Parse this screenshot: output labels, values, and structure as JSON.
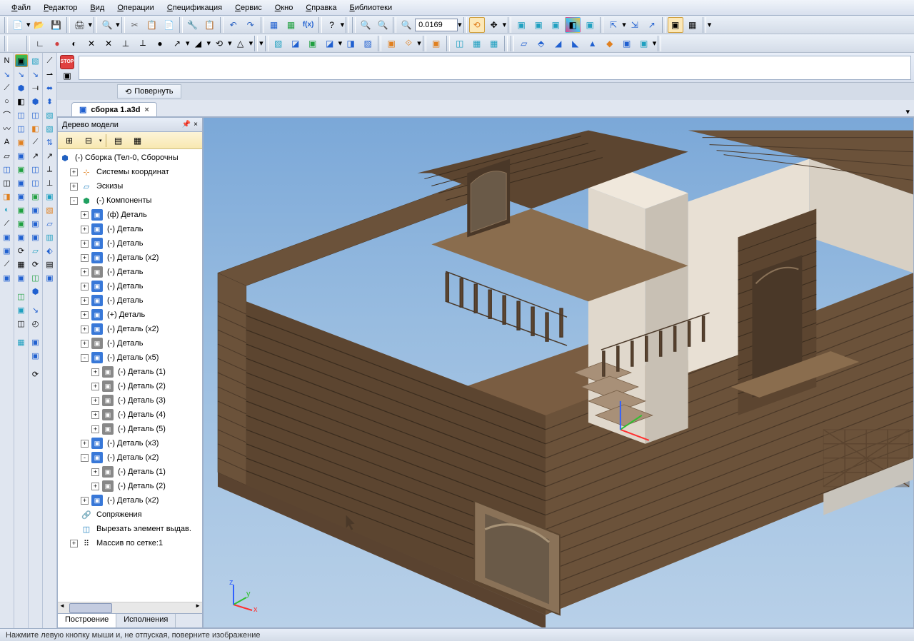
{
  "menus": [
    "Файл",
    "Редактор",
    "Вид",
    "Операции",
    "Спецификация",
    "Сервис",
    "Окно",
    "Справка",
    "Библиотеки"
  ],
  "toolbar1": {
    "zoom_value": "0.0169"
  },
  "command_bar": {
    "rotate_label": "Повернуть"
  },
  "doc_tab": {
    "title": "сборка 1.a3d"
  },
  "tree": {
    "title": "Дерево модели",
    "root": "(-) Сборка (Тел-0, Сборочны",
    "nodes": [
      {
        "indent": 1,
        "exp": "+",
        "icon": "sys",
        "label": "Системы координат"
      },
      {
        "indent": 1,
        "exp": "+",
        "icon": "sketch",
        "label": "Эскизы"
      },
      {
        "indent": 1,
        "exp": "-",
        "icon": "comp",
        "label": "(-) Компоненты"
      },
      {
        "indent": 2,
        "exp": "+",
        "icon": "part",
        "label": "(ф) Деталь"
      },
      {
        "indent": 2,
        "exp": "+",
        "icon": "part",
        "label": "(-) Деталь"
      },
      {
        "indent": 2,
        "exp": "+",
        "icon": "part",
        "label": "(-) Деталь"
      },
      {
        "indent": 2,
        "exp": "+",
        "icon": "part",
        "label": "(-) Деталь (x2)"
      },
      {
        "indent": 2,
        "exp": "+",
        "icon": "partg",
        "label": "(-) Деталь"
      },
      {
        "indent": 2,
        "exp": "+",
        "icon": "part",
        "label": "(-) Деталь"
      },
      {
        "indent": 2,
        "exp": "+",
        "icon": "part",
        "label": "(-) Деталь"
      },
      {
        "indent": 2,
        "exp": "+",
        "icon": "part",
        "label": "(+) Деталь"
      },
      {
        "indent": 2,
        "exp": "+",
        "icon": "part",
        "label": "(-) Деталь (x2)"
      },
      {
        "indent": 2,
        "exp": "+",
        "icon": "partg",
        "label": "(-) Деталь"
      },
      {
        "indent": 2,
        "exp": "-",
        "icon": "part",
        "label": "(-) Деталь (x5)"
      },
      {
        "indent": 3,
        "exp": "+",
        "icon": "partg",
        "label": "(-) Деталь (1)"
      },
      {
        "indent": 3,
        "exp": "+",
        "icon": "partg",
        "label": "(-) Деталь (2)"
      },
      {
        "indent": 3,
        "exp": "+",
        "icon": "partg",
        "label": "(-) Деталь (3)"
      },
      {
        "indent": 3,
        "exp": "+",
        "icon": "partg",
        "label": "(-) Деталь (4)"
      },
      {
        "indent": 3,
        "exp": "+",
        "icon": "partg",
        "label": "(-) Деталь (5)"
      },
      {
        "indent": 2,
        "exp": "+",
        "icon": "part",
        "label": "(-) Деталь (x3)"
      },
      {
        "indent": 2,
        "exp": "-",
        "icon": "part",
        "label": "(-) Деталь (x2)"
      },
      {
        "indent": 3,
        "exp": "+",
        "icon": "partg",
        "label": "(-) Деталь (1)"
      },
      {
        "indent": 3,
        "exp": "+",
        "icon": "partg",
        "label": "(-) Деталь (2)"
      },
      {
        "indent": 2,
        "exp": "+",
        "icon": "part",
        "label": "(-) Деталь (x2)"
      },
      {
        "indent": 1,
        "exp": "",
        "icon": "link",
        "label": "Сопряжения"
      },
      {
        "indent": 1,
        "exp": "",
        "icon": "cut",
        "label": "Вырезать элемент выдав."
      },
      {
        "indent": 1,
        "exp": "+",
        "icon": "array",
        "label": "Массив по сетке:1"
      }
    ],
    "footer_tabs": [
      "Построение",
      "Исполнения"
    ]
  },
  "statusbar": "Нажмите левую кнопку мыши и, не отпуская, поверните изображение",
  "viewport": {
    "sky_top": "#7ba8d8",
    "sky_bottom": "#b8d0e8",
    "wood_dark": "#5c4530",
    "wood_mid": "#6b523a",
    "wood_light": "#8a6d4e",
    "floor": "#7a5d42",
    "wall_light": "#e8e0d4",
    "chimney": "#d8d0c4",
    "concrete": "#c8c4bc"
  },
  "axes": {
    "x": "x",
    "y": "y",
    "z": "z"
  }
}
